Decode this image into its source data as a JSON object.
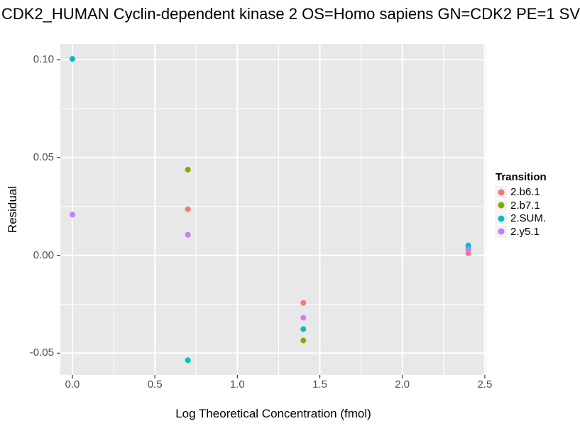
{
  "title": "CDK2_HUMAN Cyclin-dependent kinase 2 OS=Homo sapiens GN=CDK2 PE=1 SV",
  "chart_data": {
    "type": "scatter",
    "title": "CDK2_HUMAN Cyclin-dependent kinase 2 OS=Homo sapiens GN=CDK2 PE=1 SV",
    "xlabel": "Log Theoretical Concentration (fmol)",
    "ylabel": "Residual",
    "xlim": [
      -0.073,
      2.509
    ],
    "ylim": [
      -0.0611,
      0.108
    ],
    "grid": true,
    "legend_position": "right",
    "legend_title": "Transition",
    "x_ticks": [
      {
        "v": 0.0,
        "label": "0.0"
      },
      {
        "v": 0.5,
        "label": "0.5"
      },
      {
        "v": 1.0,
        "label": "1.0"
      },
      {
        "v": 1.5,
        "label": "1.5"
      },
      {
        "v": 2.0,
        "label": "2.0"
      },
      {
        "v": 2.5,
        "label": "2.5"
      }
    ],
    "y_ticks": [
      {
        "v": 0.1,
        "label": "0.10"
      },
      {
        "v": 0.05,
        "label": "0.05"
      },
      {
        "v": 0.0,
        "label": "0.00"
      },
      {
        "v": -0.05,
        "label": "-0.05"
      }
    ],
    "x_minor": [
      0.25,
      0.75,
      1.25,
      1.75,
      2.25
    ],
    "y_minor": [
      0.075,
      0.025,
      -0.025
    ],
    "series": [
      {
        "name": "2.b6.1",
        "color": "#F8766D",
        "points": [
          [
            0.7,
            0.0236
          ],
          [
            1.4,
            -0.0243
          ],
          [
            2.4,
            0.0011
          ]
        ]
      },
      {
        "name": "2.b7.1",
        "color": "#7CAE00",
        "points": [
          [
            0.7,
            0.0438
          ],
          [
            1.4,
            -0.0435
          ],
          [
            2.4,
            0.0038
          ]
        ]
      },
      {
        "name": "2.SUM.",
        "color": "#00BFC4",
        "points": [
          [
            0.0,
            0.1004
          ],
          [
            0.7,
            -0.0536
          ],
          [
            1.4,
            -0.0377
          ],
          [
            2.4,
            0.0051
          ]
        ]
      },
      {
        "name": "2.y5.1",
        "color": "#C77CFF",
        "points": [
          [
            0.0,
            0.0208
          ],
          [
            0.7,
            0.0105
          ],
          [
            1.4,
            -0.0319
          ],
          [
            2.4,
            0.0029
          ]
        ]
      }
    ]
  },
  "colors": {
    "panel_bg": "#E8E8E8",
    "grid_major": "#FFFFFF",
    "grid_minor": "#FFFFFF",
    "tick_text": "#4D4D4D",
    "tick_mark": "#333333",
    "legend_key_bg": "#F2F2F2"
  }
}
